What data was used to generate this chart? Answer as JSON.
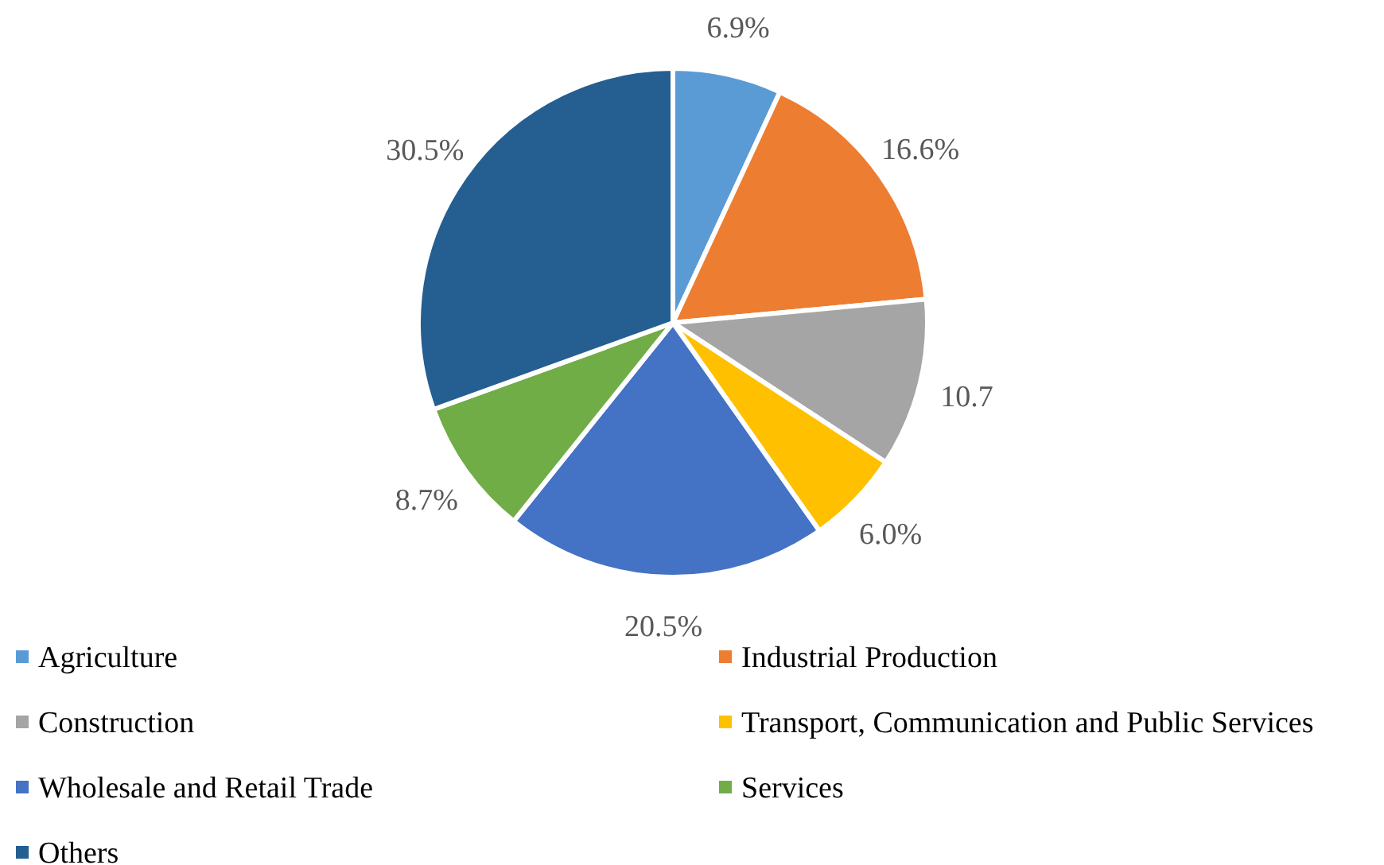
{
  "chart_data": {
    "type": "pie",
    "categories": [
      "Agriculture",
      "Industrial Production",
      "Construction",
      "Transport, Communication and Public Services",
      "Wholesale and Retail Trade",
      "Services",
      "Others"
    ],
    "values": [
      6.9,
      16.6,
      10.7,
      6.0,
      20.5,
      8.7,
      30.5
    ],
    "colors": [
      "#5b9bd5",
      "#ed7d31",
      "#a5a5a5",
      "#ffc000",
      "#4472c4",
      "#70ad47",
      "#255e91"
    ],
    "value_labels": [
      "6.9%",
      "16.6%",
      "10.7",
      "6.0%",
      "20.5%",
      "8.7%",
      "30.5%"
    ],
    "legend": "bottom"
  }
}
